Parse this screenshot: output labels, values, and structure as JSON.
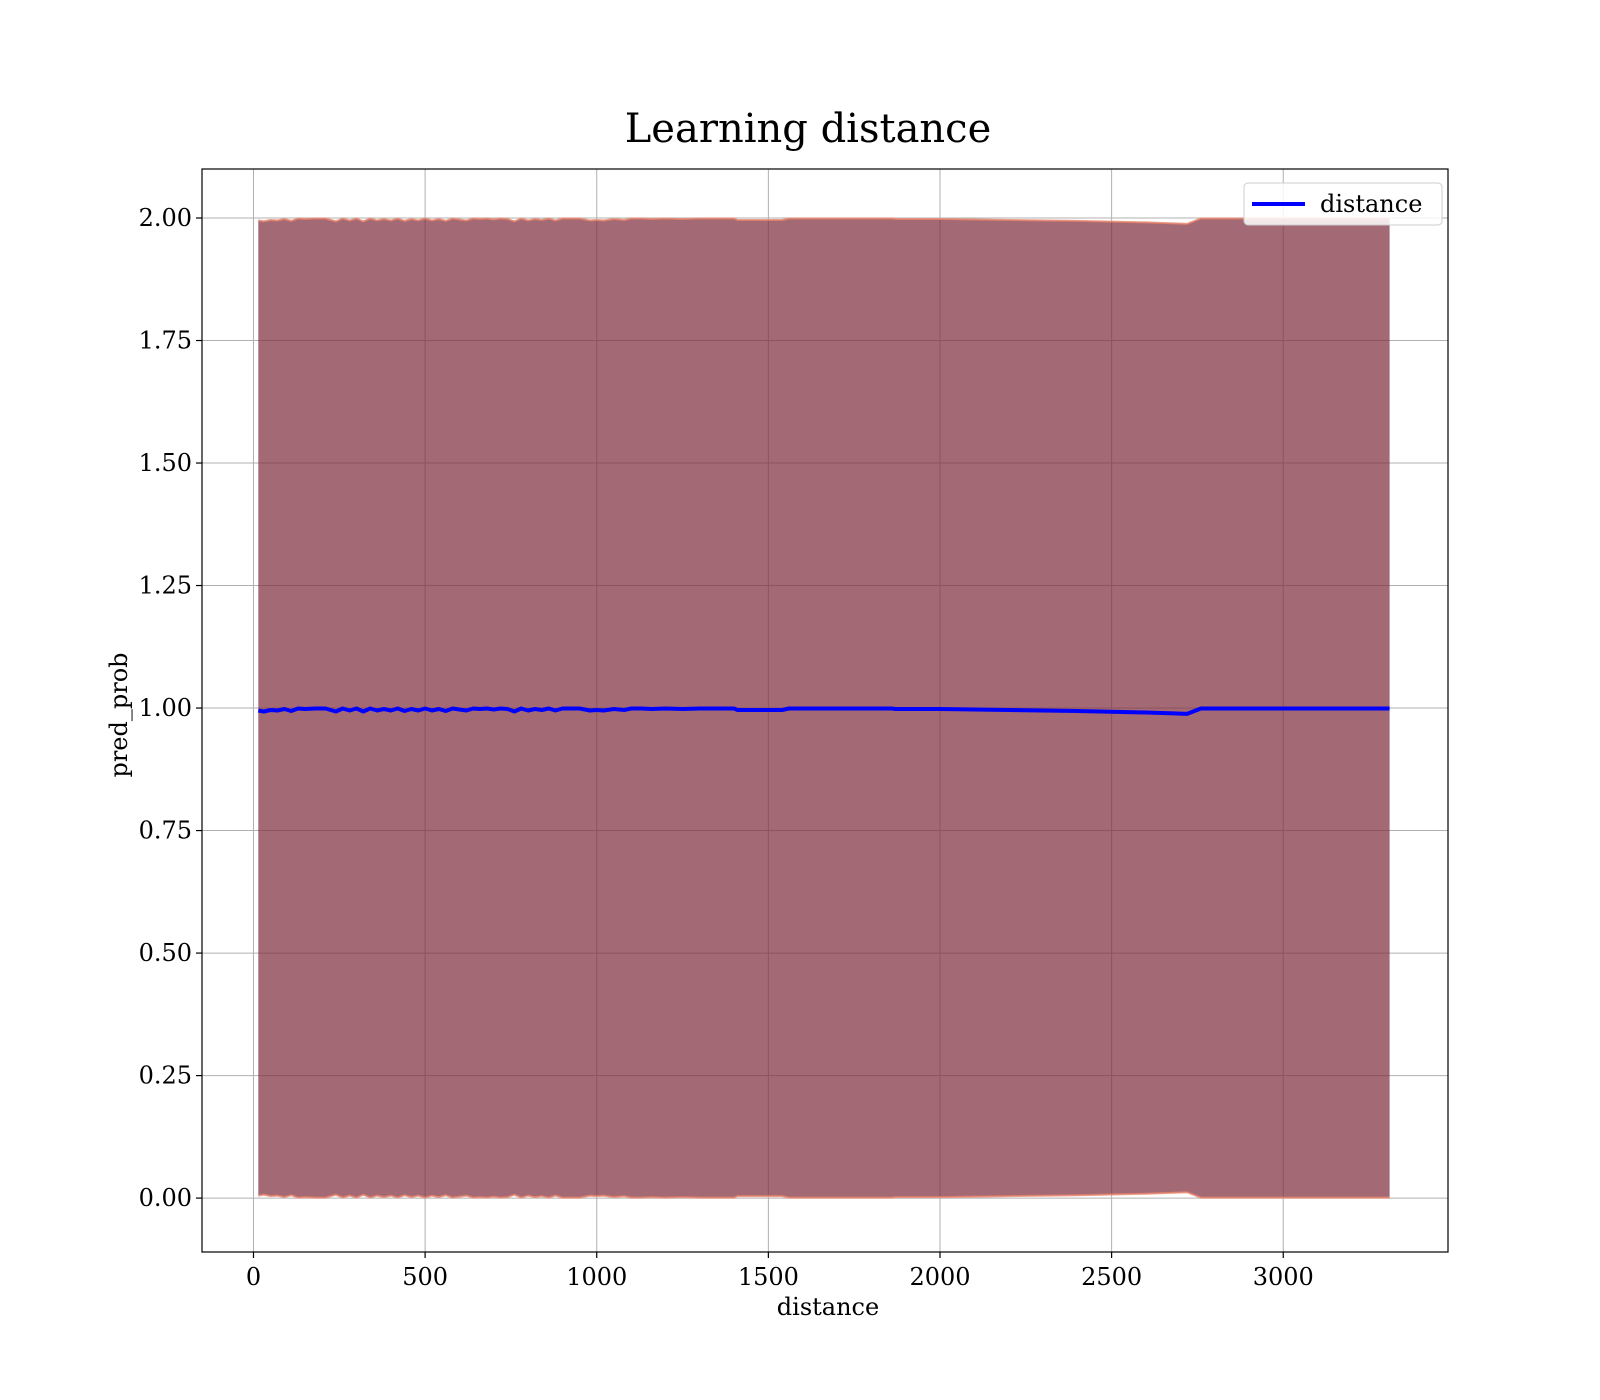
{
  "chart_data": {
    "type": "line",
    "title": "Learning distance",
    "xlabel": "distance",
    "ylabel": "pred_prob",
    "xlim": [
      -150,
      3480
    ],
    "ylim": [
      -0.11,
      2.1
    ],
    "xticks": [
      0,
      500,
      1000,
      1500,
      2000,
      2500,
      3000
    ],
    "yticks": [
      0.0,
      0.25,
      0.5,
      0.75,
      1.0,
      1.25,
      1.5,
      1.75,
      2.0
    ],
    "ytick_labels": [
      "0.00",
      "0.25",
      "0.50",
      "0.75",
      "1.00",
      "1.25",
      "1.50",
      "1.75",
      "2.00"
    ],
    "grid": true,
    "legend_position": "top-right",
    "colors": {
      "line": "#0000ff",
      "band_fill": "#7f2f3f",
      "band_edge": "#e8836a",
      "grid": "#b0b0b0"
    },
    "series": [
      {
        "name": "distance",
        "x": [
          14,
          30,
          50,
          70,
          90,
          110,
          130,
          150,
          180,
          210,
          240,
          260,
          280,
          300,
          320,
          340,
          360,
          380,
          400,
          420,
          440,
          460,
          480,
          500,
          520,
          540,
          560,
          580,
          600,
          620,
          640,
          660,
          680,
          700,
          720,
          740,
          760,
          780,
          800,
          820,
          840,
          860,
          880,
          900,
          920,
          950,
          980,
          1000,
          1020,
          1050,
          1080,
          1100,
          1130,
          1160,
          1200,
          1250,
          1300,
          1350,
          1400,
          1410,
          1450,
          1500,
          1540,
          1560,
          1600,
          1700,
          1800,
          1860,
          1870,
          2000,
          2200,
          2400,
          2600,
          2680,
          2720,
          2760,
          2800,
          3000,
          3200,
          3310
        ],
        "y": [
          0.995,
          0.993,
          0.996,
          0.995,
          0.998,
          0.994,
          0.999,
          0.998,
          0.999,
          0.999,
          0.993,
          0.999,
          0.995,
          0.999,
          0.993,
          0.999,
          0.995,
          0.998,
          0.995,
          0.999,
          0.994,
          0.998,
          0.995,
          0.999,
          0.995,
          0.998,
          0.994,
          0.999,
          0.997,
          0.995,
          0.999,
          0.998,
          0.999,
          0.997,
          0.999,
          0.998,
          0.993,
          0.999,
          0.995,
          0.998,
          0.996,
          0.999,
          0.995,
          0.999,
          0.999,
          0.999,
          0.995,
          0.996,
          0.995,
          0.998,
          0.996,
          0.999,
          0.999,
          0.998,
          0.999,
          0.998,
          0.999,
          0.999,
          0.999,
          0.996,
          0.996,
          0.996,
          0.996,
          0.999,
          0.999,
          0.999,
          0.999,
          0.999,
          0.998,
          0.998,
          0.996,
          0.994,
          0.991,
          0.989,
          0.988,
          0.999,
          0.999,
          0.999,
          0.999,
          0.999
        ]
      }
    ],
    "band": {
      "lower": "1 - y",
      "upper": "1 + y"
    }
  }
}
